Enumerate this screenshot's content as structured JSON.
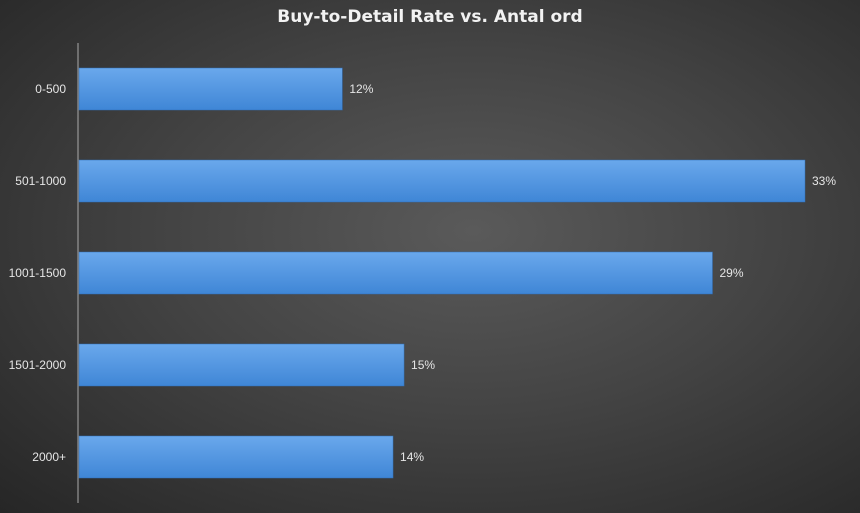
{
  "chart_data": {
    "type": "bar",
    "orientation": "horizontal",
    "title": "Buy-to-Detail Rate vs. Antal ord",
    "categories": [
      "0-500",
      "501-1000",
      "1001-1500",
      "1501-2000",
      "2000+"
    ],
    "values": [
      12.0,
      33.0,
      28.8,
      14.8,
      14.3
    ],
    "data_labels": [
      "12%",
      "33%",
      "29%",
      "15%",
      "14%"
    ],
    "xlabel": "",
    "ylabel": "",
    "xlim": [
      0,
      33
    ],
    "grid": false,
    "bar_color": "#4a8fdc"
  }
}
